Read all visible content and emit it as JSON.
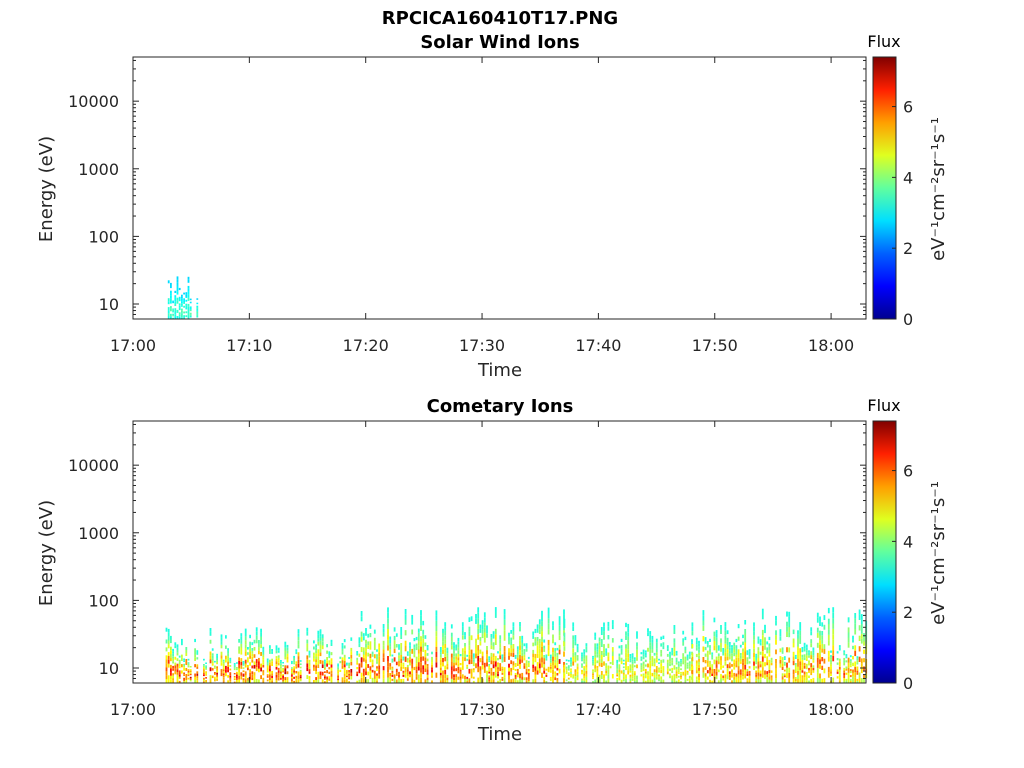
{
  "figure_title": "RPCICA160410T17.PNG",
  "colors": {
    "colormap": [
      "#00008F",
      "#0000FF",
      "#0080FF",
      "#00FFFF",
      "#80FF80",
      "#FFFF00",
      "#FF8000",
      "#FF0000",
      "#800000"
    ]
  },
  "chart_data": [
    {
      "type": "heatmap",
      "title": "Solar Wind Ions",
      "xlabel": "Time",
      "ylabel": "Energy (eV)",
      "x_ticks": [
        "17:00",
        "17:10",
        "17:20",
        "17:30",
        "17:40",
        "17:50",
        "18:00"
      ],
      "x_range": [
        "17:00",
        "18:03"
      ],
      "y_scale": "log",
      "y_ticks": [
        "10",
        "100",
        "1000",
        "10000"
      ],
      "y_range": [
        6,
        45000
      ],
      "colorbar": {
        "title": "Flux",
        "label": "eV⁻¹cm⁻²sr⁻¹s⁻¹",
        "ticks": [
          "0",
          "2",
          "4",
          "6"
        ],
        "range": [
          0,
          7.4
        ]
      },
      "grid": false,
      "activity": [
        {
          "t_start": "17:02.8",
          "t_end": "17:05.6",
          "e_min": 6,
          "e_max": 26,
          "flux_min": 2.5,
          "flux_max": 3.6
        }
      ]
    },
    {
      "type": "heatmap",
      "title": "Cometary Ions",
      "xlabel": "Time",
      "ylabel": "Energy (eV)",
      "x_ticks": [
        "17:00",
        "17:10",
        "17:20",
        "17:30",
        "17:40",
        "17:50",
        "18:00"
      ],
      "x_range": [
        "17:00",
        "18:03"
      ],
      "y_scale": "log",
      "y_ticks": [
        "10",
        "100",
        "1000",
        "10000"
      ],
      "y_range": [
        6,
        45000
      ],
      "colorbar": {
        "title": "Flux",
        "label": "eV⁻¹cm⁻²sr⁻¹s⁻¹",
        "ticks": [
          "0",
          "2",
          "4",
          "6"
        ],
        "range": [
          0,
          7.4
        ]
      },
      "grid": false,
      "activity": [
        {
          "t_start": "17:02.8",
          "t_end": "17:19.0",
          "e_min": 6,
          "e_max": 40,
          "flux_min": 3,
          "flux_max": 7.2
        },
        {
          "t_start": "17:19.0",
          "t_end": "17:37.0",
          "e_min": 6,
          "e_max": 80,
          "flux_min": 3,
          "flux_max": 7.0
        },
        {
          "t_start": "17:37.0",
          "t_end": "17:48.0",
          "e_min": 6,
          "e_max": 55,
          "flux_min": 3,
          "flux_max": 5.5
        },
        {
          "t_start": "17:48.0",
          "t_end": "18:03.0",
          "e_min": 6,
          "e_max": 80,
          "flux_min": 3,
          "flux_max": 6.5
        }
      ]
    }
  ]
}
